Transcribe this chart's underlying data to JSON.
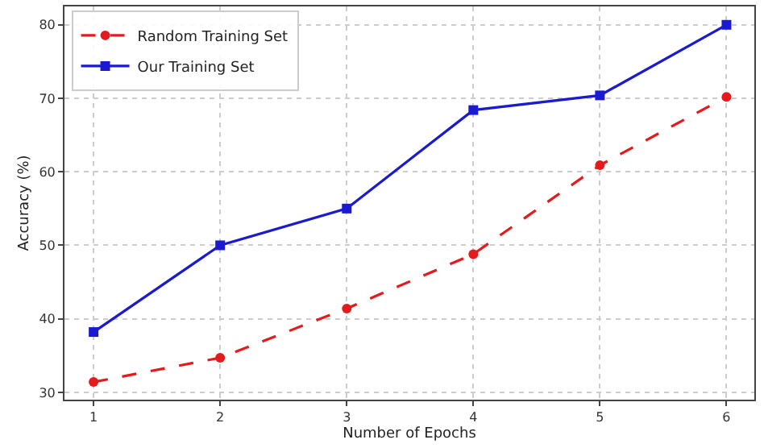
{
  "chart_data": {
    "type": "line",
    "xlabel": "Number of Epochs",
    "ylabel": "Accuracy (%)",
    "x": [
      1,
      2,
      3,
      4,
      5,
      6
    ],
    "series": [
      {
        "name": "Random Training Set",
        "color": "#e41a1c",
        "values": [
          31.4,
          34.7,
          41.4,
          48.8,
          60.9,
          70.2
        ],
        "marker": "circle",
        "line_style": "dashed"
      },
      {
        "name": "Our Training Set",
        "color": "#1a1ad0",
        "values": [
          38.2,
          50.0,
          55.0,
          68.4,
          70.4,
          80.0
        ],
        "marker": "square",
        "line_style": "solid"
      }
    ],
    "xlim": [
      0.77,
      6.22
    ],
    "ylim": [
      29,
      82.5
    ],
    "xticks": [
      1,
      2,
      3,
      4,
      5,
      6
    ],
    "yticks": [
      30,
      40,
      50,
      60,
      70,
      80
    ],
    "grid": true,
    "legend": "top left"
  }
}
